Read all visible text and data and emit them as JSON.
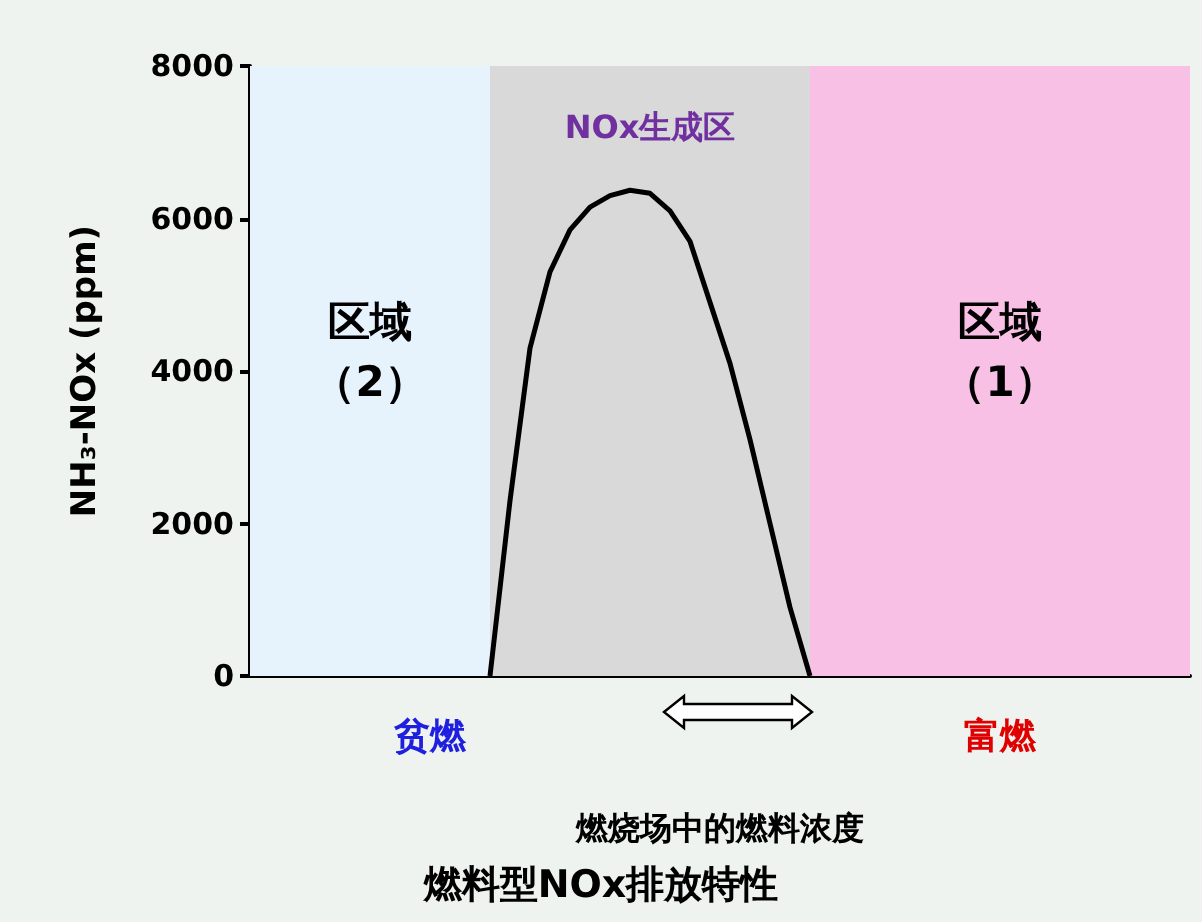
{
  "chart_data": {
    "type": "line",
    "title": "燃料型NOx排放特性",
    "xlabel": "燃烧场中的燃料浓度",
    "ylabel": "NH₃-NOx (ppm)",
    "categories": [
      null,
      null,
      null,
      null,
      null,
      null,
      null,
      null,
      null,
      null,
      null,
      null,
      null,
      null,
      null,
      null,
      null,
      null,
      null,
      null,
      null,
      null,
      null,
      null,
      null,
      null,
      null,
      null,
      null,
      null,
      null,
      null,
      null,
      null,
      null,
      null,
      null,
      null,
      null,
      null,
      null,
      null,
      null,
      null,
      null,
      null,
      null,
      null
    ],
    "series": [
      {
        "color": "#000000",
        "values": [
          null,
          null,
          null,
          null,
          null,
          null,
          null,
          null,
          null,
          null,
          null,
          null,
          0,
          2300,
          4300,
          5300,
          5850,
          6150,
          6300,
          6370,
          6330,
          6100,
          5700,
          4900,
          4100,
          3100,
          2000,
          900,
          0,
          null,
          null,
          null,
          null,
          null,
          null,
          null,
          null,
          null,
          null,
          null,
          null,
          null,
          null,
          null,
          null,
          null,
          null,
          null
        ]
      }
    ],
    "ylim": [
      0,
      8000
    ],
    "yticks": [
      0,
      2000,
      4000,
      6000,
      8000
    ],
    "tick_labels": "y",
    "grid": false,
    "marker": "none",
    "annotations": [
      "区域（2）",
      "NOx生成区",
      "区域（1）",
      "贫燃",
      "富燃"
    ]
  }
}
